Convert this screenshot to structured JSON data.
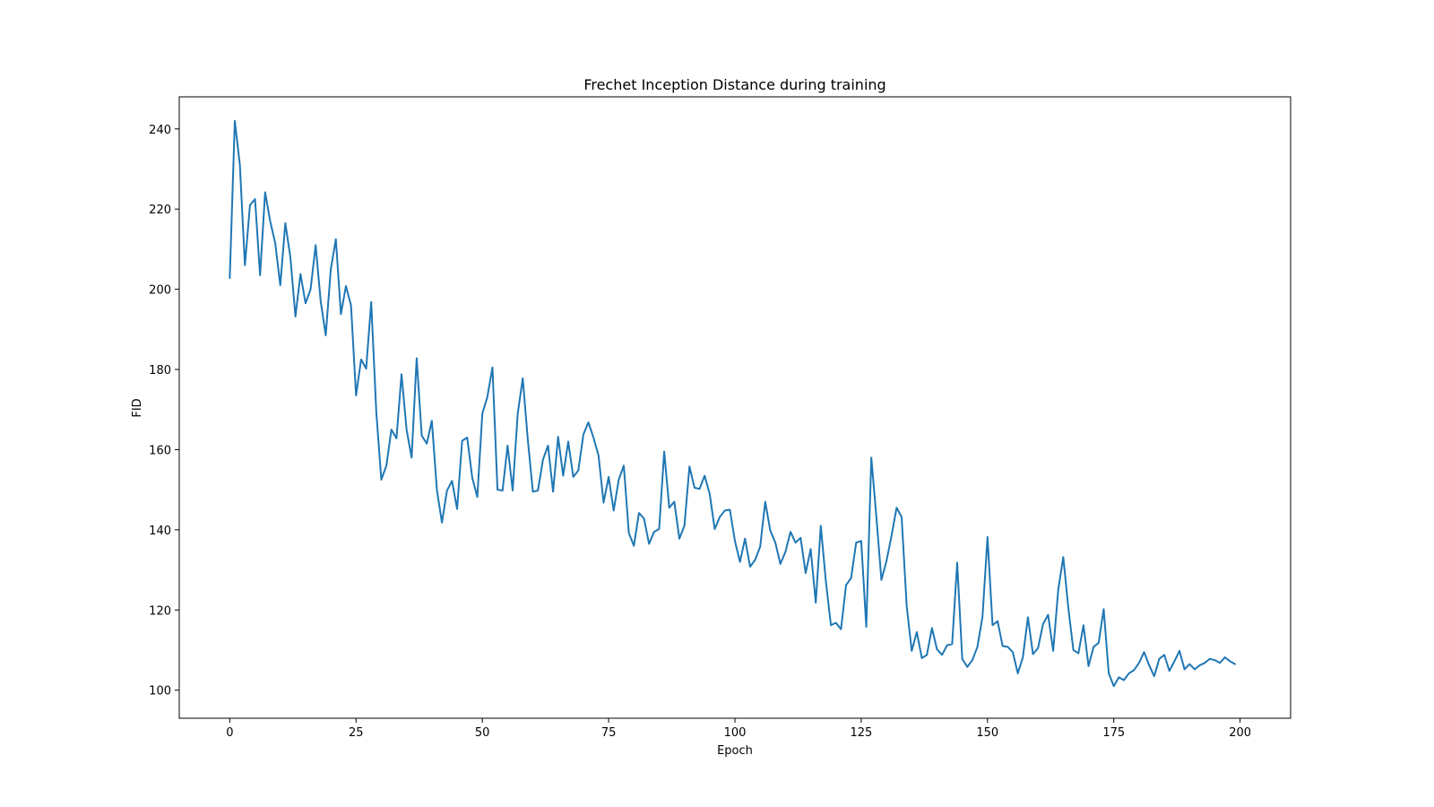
{
  "chart_data": {
    "type": "line",
    "title": "Frechet Inception Distance during training",
    "xlabel": "Epoch",
    "ylabel": "FID",
    "xlim": [
      -10,
      210
    ],
    "ylim": [
      93,
      248
    ],
    "xticks": [
      0,
      25,
      50,
      75,
      100,
      125,
      150,
      175,
      200
    ],
    "yticks": [
      100,
      120,
      140,
      160,
      180,
      200,
      220,
      240
    ],
    "grid": false,
    "colors": {
      "line": "#1f77b4"
    },
    "series": [
      {
        "x": [
          0,
          1,
          2,
          3,
          4,
          5,
          6,
          7,
          8,
          9,
          10,
          11,
          12,
          13,
          14,
          15,
          16,
          17,
          18,
          19,
          20,
          21,
          22,
          23,
          24,
          25,
          26,
          27,
          28,
          29,
          30,
          31,
          32,
          33,
          34,
          35,
          36,
          37,
          38,
          39,
          40,
          41,
          42,
          43,
          44,
          45,
          46,
          47,
          48,
          49,
          50,
          51,
          52,
          53,
          54,
          55,
          56,
          57,
          58,
          59,
          60,
          61,
          62,
          63,
          64,
          65,
          66,
          67,
          68,
          69,
          70,
          71,
          72,
          73,
          74,
          75,
          76,
          77,
          78,
          79,
          80,
          81,
          82,
          83,
          84,
          85,
          86,
          87,
          88,
          89,
          90,
          91,
          92,
          93,
          94,
          95,
          96,
          97,
          98,
          99,
          100,
          101,
          102,
          103,
          104,
          105,
          106,
          107,
          108,
          109,
          110,
          111,
          112,
          113,
          114,
          115,
          116,
          117,
          118,
          119,
          120,
          121,
          122,
          123,
          124,
          125,
          126,
          127,
          128,
          129,
          130,
          131,
          132,
          133,
          134,
          135,
          136,
          137,
          138,
          139,
          140,
          141,
          142,
          143,
          144,
          145,
          146,
          147,
          148,
          149,
          150,
          151,
          152,
          153,
          154,
          155,
          156,
          157,
          158,
          159,
          160,
          161,
          162,
          163,
          164,
          165,
          166,
          167,
          168,
          169,
          170,
          171,
          172,
          173,
          174,
          175,
          176,
          177,
          178,
          179,
          180,
          181,
          182,
          183,
          184,
          185,
          186,
          187,
          188,
          189,
          190,
          191,
          192,
          193,
          194,
          195,
          196,
          197,
          198,
          199
        ],
        "values": [
          202.8,
          242,
          231,
          206,
          221,
          222.5,
          203.5,
          224.2,
          217,
          211.5,
          201,
          216.5,
          208,
          193.2,
          203.8,
          196.5,
          200,
          211,
          197,
          188.5,
          205,
          212.5,
          193.8,
          200.8,
          196,
          173.5,
          182.5,
          180.2,
          196.8,
          169.5,
          152.5,
          156,
          165,
          162.8,
          178.8,
          165,
          158,
          182.8,
          163.5,
          161.5,
          167.2,
          150,
          141.8,
          149.8,
          152.2,
          145.2,
          162.2,
          163,
          153,
          148.2,
          169,
          173.2,
          180.5,
          150,
          149.8,
          161,
          149.8,
          169,
          177.8,
          162.5,
          149.5,
          149.8,
          157.5,
          161,
          149.5,
          163.2,
          153.5,
          162,
          153.2,
          154.8,
          163.8,
          166.8,
          163,
          158.5,
          146.8,
          153.2,
          144.8,
          152.5,
          156,
          139.2,
          136,
          144.2,
          142.8,
          136.5,
          139.5,
          140.2,
          159.5,
          145.5,
          147,
          137.8,
          141,
          155.8,
          150.5,
          150.2,
          153.5,
          149,
          140.2,
          143.2,
          144.8,
          145,
          137.2,
          132,
          137.8,
          130.8,
          132.5,
          135.8,
          147,
          139.8,
          136.8,
          131.5,
          134.5,
          139.5,
          136.8,
          138,
          129.2,
          135.2,
          121.8,
          141,
          127.2,
          116.2,
          116.8,
          115.2,
          126.2,
          128,
          136.8,
          137.2,
          115.8,
          158,
          143.2,
          127.5,
          132.2,
          138.5,
          145.5,
          143.2,
          121,
          109.8,
          114.5,
          108,
          108.8,
          115.5,
          110.2,
          108.8,
          111.2,
          111.5,
          131.8,
          107.8,
          105.8,
          107.5,
          110.8,
          118.2,
          138.2,
          116.2,
          117.2,
          111,
          110.8,
          109.5,
          104.2,
          108.2,
          118.2,
          109,
          110.5,
          116.5,
          118.8,
          109.8,
          125,
          133.2,
          120.5,
          110,
          109.2,
          116.2,
          106,
          110.8,
          111.8,
          120.2,
          104.2,
          101,
          103.2,
          102.5,
          104.2,
          105,
          106.8,
          109.5,
          106.2,
          103.5,
          107.8,
          108.8,
          104.8,
          107.2,
          109.8,
          105.2,
          106.5,
          105.2,
          106.2,
          106.8,
          107.8,
          107.5,
          106.8,
          108.2,
          107.2,
          106.5
        ]
      }
    ]
  }
}
